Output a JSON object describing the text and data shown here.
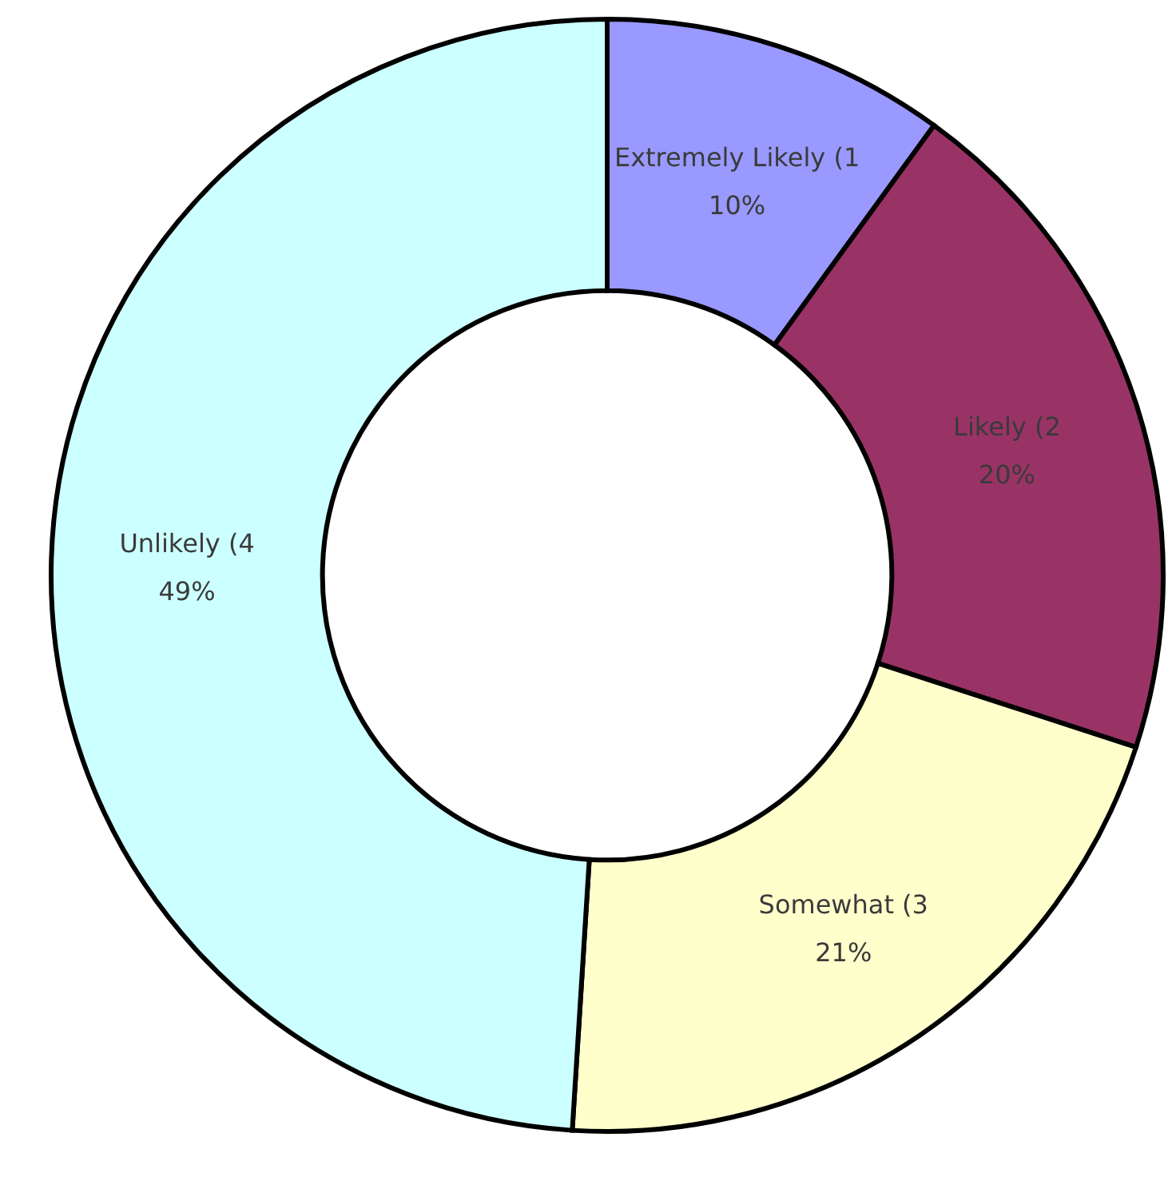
{
  "chart_data": {
    "type": "donut",
    "categories": [
      "Extremely Likely (1",
      "Likely (2",
      "Somewhat (3",
      "Unlikely (4"
    ],
    "values": [
      10,
      20,
      21,
      49
    ],
    "colors": [
      "#9999ff",
      "#993366",
      "#ffffcc",
      "#ccffff"
    ],
    "value_labels": [
      "10%",
      "20%",
      "21%",
      "49%"
    ]
  }
}
